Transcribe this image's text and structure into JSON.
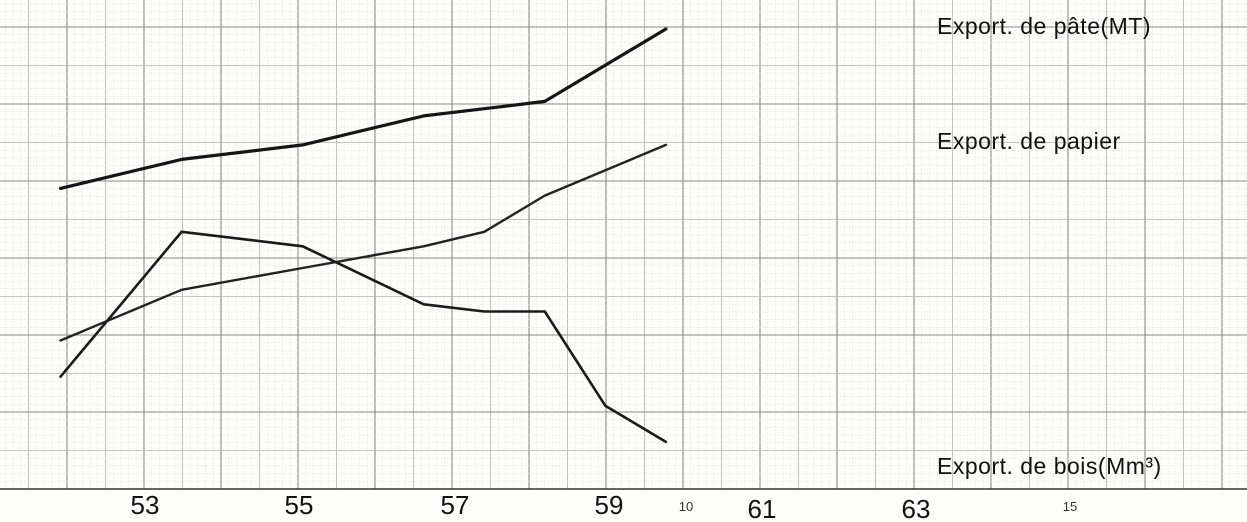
{
  "chart_data": {
    "type": "line",
    "x": [
      53,
      54,
      55,
      56,
      57,
      58,
      59,
      60,
      61,
      62,
      63
    ],
    "series": [
      {
        "name": "Export. de pâte(MT)",
        "values": [
          5.0,
          null,
          5.4,
          null,
          5.6,
          null,
          6.0,
          6.1,
          6.2,
          null,
          7.2
        ],
        "color": "#151515"
      },
      {
        "name": "Export. de papier",
        "values": [
          2.9,
          null,
          3.6,
          null,
          3.9,
          null,
          4.2,
          4.4,
          4.9,
          null,
          5.6
        ],
        "color": "#222222"
      },
      {
        "name": "Export. de bois(Mm³)",
        "values": [
          2.4,
          null,
          4.4,
          null,
          4.2,
          null,
          3.4,
          3.3,
          3.3,
          2.0,
          1.5
        ],
        "color": "#1a1a1a"
      }
    ],
    "x_ticks": [
      "53",
      "55",
      "57",
      "59",
      "61",
      "63"
    ],
    "minor_x_ticks": [
      "10",
      "15"
    ],
    "xlim": [
      52,
      72.6
    ],
    "ylim": [
      0.85,
      7.6
    ],
    "grid": true
  }
}
